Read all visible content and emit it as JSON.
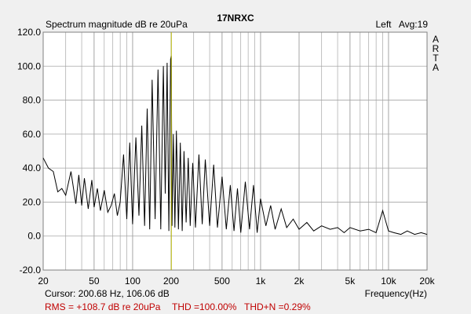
{
  "header": {
    "title_left": "Spectrum magnitude dB re 20uPa",
    "title_center": "17NRXC",
    "channel_label": "Left",
    "avg_label": "Avg:19"
  },
  "vertical_brand": [
    "A",
    "R",
    "T",
    "A"
  ],
  "status": {
    "cursor": "Cursor: 200.68 Hz, 106.06 dB",
    "freq_label": "Frequency(Hz)",
    "rms": "RMS = +108.7 dB re 20uPa",
    "thd": "THD =100.00%",
    "thdn": "THD+N =0.29%"
  },
  "colors": {
    "plot_bg": "#ffffff",
    "grid": "#a6a6a6",
    "trace": "#000000",
    "cursor_line": "#b4b400",
    "status_red": "#c00000"
  },
  "chart_data": {
    "type": "line",
    "title": "17NRXC",
    "ylabel": "Spectrum magnitude dB re 20uPa",
    "xlabel": "Frequency(Hz)",
    "xscale": "log",
    "xlim": [
      20,
      20000
    ],
    "ylim": [
      -20,
      120
    ],
    "yticks": [
      120,
      100,
      80,
      60,
      40,
      20,
      0,
      -20
    ],
    "ytick_labels": [
      "120.0",
      "100.0",
      "80.0",
      "60.0",
      "40.0",
      "20.0",
      "0.0",
      "-20.0"
    ],
    "xticks": [
      20,
      50,
      100,
      200,
      500,
      1000,
      2000,
      5000,
      10000,
      20000
    ],
    "xtick_labels": [
      "20",
      "50",
      "100",
      "200",
      "500",
      "1k",
      "2k",
      "5k",
      "10k",
      "20k"
    ],
    "cursor_x": 200.68,
    "series": [
      {
        "x": [
          20,
          22,
          24,
          26,
          28,
          30,
          33,
          36,
          38,
          40,
          42,
          45,
          48,
          50,
          53,
          56,
          60,
          64,
          68,
          72,
          76,
          80,
          85,
          90,
          95,
          100,
          106,
          112,
          118,
          124,
          130,
          136,
          142,
          150,
          158,
          166,
          174,
          180,
          186,
          192,
          198,
          200.68,
          203,
          208,
          214,
          220,
          228,
          236,
          244,
          252,
          262,
          272,
          282,
          295,
          310,
          330,
          350,
          370,
          400,
          430,
          460,
          500,
          540,
          580,
          620,
          660,
          700,
          760,
          820,
          880,
          940,
          1000,
          1100,
          1200,
          1300,
          1450,
          1600,
          1800,
          2000,
          2300,
          2600,
          3000,
          3500,
          4000,
          4500,
          5000,
          6000,
          7000,
          8000,
          9000,
          10000,
          11000,
          12500,
          14000,
          16000,
          18000,
          20000
        ],
        "y": [
          46,
          40,
          38,
          26,
          28,
          24,
          38,
          19,
          36,
          18,
          34,
          16,
          33,
          17,
          28,
          15,
          27,
          14,
          18,
          25,
          12,
          20,
          48,
          10,
          55,
          7,
          58,
          12,
          65,
          6,
          75,
          4,
          92,
          10,
          98,
          4,
          100,
          25,
          102,
          3,
          104,
          106.06,
          6,
          60,
          5,
          62,
          4,
          55,
          3,
          50,
          8,
          46,
          6,
          43,
          5,
          48,
          7,
          45,
          6,
          42,
          5,
          35,
          4,
          30,
          3,
          28,
          2,
          32,
          4,
          30,
          2,
          22,
          6,
          18,
          4,
          16,
          5,
          10,
          4,
          8,
          3,
          6,
          4,
          5,
          2,
          5,
          3,
          4,
          2,
          15,
          3,
          2,
          1,
          3,
          1,
          2,
          1
        ]
      }
    ],
    "legend_position": "none",
    "grid": true
  }
}
